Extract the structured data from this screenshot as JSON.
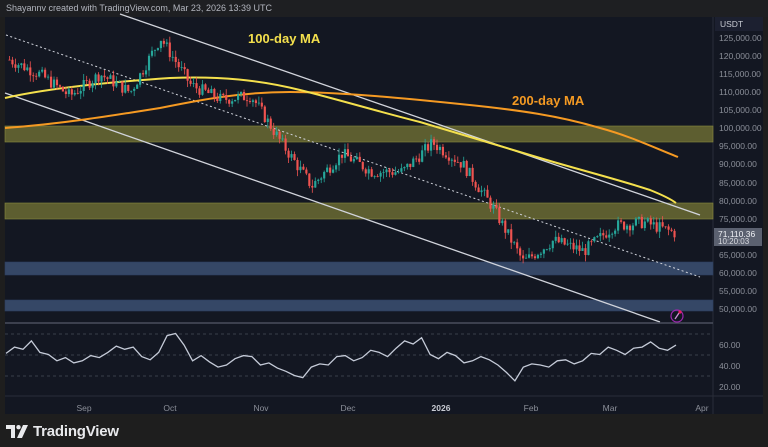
{
  "header": {
    "attribution": "Shayannv created with TradingView.com, Mar 23, 2026 13:39 UTC"
  },
  "footer": {
    "brand": "TradingView",
    "logo_icon": "tradingview-logo-icon"
  },
  "colors": {
    "background": "#131722",
    "up_candle": "#26a69a",
    "down_candle": "#ef5350",
    "ma100": "#f4e04d",
    "ma200": "#f59a23",
    "channel_lines": "#d1d4dc",
    "supply_zone": "#6b6b32",
    "demand_zone": "#3a4d6e",
    "rsi_line": "#c5cbd8",
    "price_tag": "#5b6170"
  },
  "price_axis": {
    "currency": "USDT",
    "ticks": [
      "125,000.00",
      "120,000.00",
      "115,000.00",
      "110,000.00",
      "105,000.00",
      "100,000.00",
      "95,000.00",
      "90,000.00",
      "85,000.00",
      "80,000.00",
      "75,000.00",
      "65,000.00",
      "60,000.00",
      "55,000.00",
      "50,000.00"
    ],
    "current_price": "71,110.36",
    "countdown": "10:20:03"
  },
  "rsi_axis": {
    "ticks": [
      "60.00",
      "40.00",
      "20.00"
    ]
  },
  "time_axis": {
    "labels": [
      "Sep",
      "Oct",
      "Nov",
      "Dec",
      "2026",
      "Feb",
      "Mar",
      "Apr"
    ]
  },
  "annotations": {
    "ma100_label": "100-day MA",
    "ma200_label": "200-day MA"
  },
  "chart_data": {
    "type": "candlestick",
    "title": "BTC/USDT Daily",
    "subtitle": "Shayannv created with TradingView.com, Mar 23, 2026 13:39 UTC",
    "xlabel": "",
    "ylabel": "USDT",
    "ylim": [
      47000,
      128000
    ],
    "x_ticks": [
      "Sep",
      "Oct",
      "Nov",
      "Dec",
      "2026",
      "Feb",
      "Mar",
      "Apr"
    ],
    "y_ticks": [
      50000,
      55000,
      60000,
      65000,
      70000,
      75000,
      80000,
      85000,
      90000,
      95000,
      100000,
      105000,
      110000,
      115000,
      120000,
      125000
    ],
    "grid": false,
    "last_price": 71110.36,
    "approx_close_path": {
      "x": [
        "Aug 12",
        "Aug 22",
        "Sep 1",
        "Sep 15",
        "Sep 25",
        "Oct 6",
        "Oct 10",
        "Oct 20",
        "Nov 1",
        "Nov 14",
        "Nov 21",
        "Dec 3",
        "Dec 15",
        "Jan 1",
        "Jan 14",
        "Jan 20",
        "Feb 1",
        "Feb 6",
        "Feb 15",
        "Mar 1",
        "Mar 4",
        "Mar 16",
        "Mar 23"
      ],
      "values": [
        119000,
        115000,
        109000,
        115000,
        110000,
        125000,
        112000,
        108000,
        109000,
        96000,
        84000,
        93000,
        88000,
        88000,
        96000,
        90000,
        78000,
        63000,
        69000,
        66000,
        73000,
        74000,
        71110
      ]
    },
    "series": [
      {
        "name": "100-day MA",
        "color": "#f4e04d",
        "points": [
          [
            "Aug",
            107000
          ],
          [
            "Sep",
            112000
          ],
          [
            "Oct",
            113000
          ],
          [
            "Nov",
            109000
          ],
          [
            "Dec",
            103000
          ],
          [
            "Jan",
            96000
          ],
          [
            "Feb",
            88000
          ],
          [
            "Mar",
            81000
          ],
          [
            "Mar 23",
            79000
          ]
        ]
      },
      {
        "name": "200-day MA",
        "color": "#f59a23",
        "points": [
          [
            "Aug",
            100000
          ],
          [
            "Sep",
            104000
          ],
          [
            "Oct",
            108000
          ],
          [
            "Nov",
            110000
          ],
          [
            "Dec",
            109000
          ],
          [
            "Jan",
            107000
          ],
          [
            "Feb",
            105000
          ],
          [
            "Mar",
            97000
          ],
          [
            "Mar 23",
            93000
          ]
        ]
      }
    ],
    "zones": [
      {
        "type": "supply",
        "from": 96000,
        "to": 100500
      },
      {
        "type": "supply",
        "from": 75000,
        "to": 79500
      },
      {
        "type": "demand",
        "from": 59500,
        "to": 63000
      },
      {
        "type": "demand",
        "from": 49500,
        "to": 52500
      }
    ],
    "trendlines": [
      {
        "name": "channel-upper",
        "style": "solid",
        "from": [
          "Aug 1",
          130000
        ],
        "to": [
          "Mar 26",
          76000
        ]
      },
      {
        "name": "channel-lower",
        "style": "solid",
        "from": [
          "Aug 1",
          110000
        ],
        "to": [
          "Mar 23",
          48000
        ]
      },
      {
        "name": "channel-mid",
        "style": "dotted",
        "from": [
          "Aug 1",
          127000
        ],
        "to": [
          "Mar 26",
          60000
        ]
      }
    ],
    "indicators": [
      {
        "name": "RSI",
        "ylim": [
          10,
          75
        ],
        "y_ticks": [
          20,
          40,
          60
        ],
        "levels": [
          70,
          50,
          30
        ],
        "approx_values": [
          51,
          57,
          55,
          63,
          52,
          50,
          44,
          47,
          42,
          44,
          49,
          47,
          52,
          58,
          55,
          57,
          48,
          45,
          52,
          68,
          70,
          59,
          44,
          49,
          43,
          38,
          40,
          46,
          49,
          48,
          40,
          42,
          37,
          34,
          30,
          28,
          38,
          41,
          40,
          48,
          49,
          44,
          47,
          54,
          52,
          48,
          56,
          63,
          60,
          66,
          50,
          46,
          52,
          49,
          42,
          44,
          48,
          45,
          40,
          33,
          25,
          38,
          41,
          40,
          38,
          44,
          45,
          41,
          44,
          51,
          50,
          57,
          54,
          50,
          56,
          57,
          62,
          56,
          54,
          59
        ]
      }
    ]
  }
}
